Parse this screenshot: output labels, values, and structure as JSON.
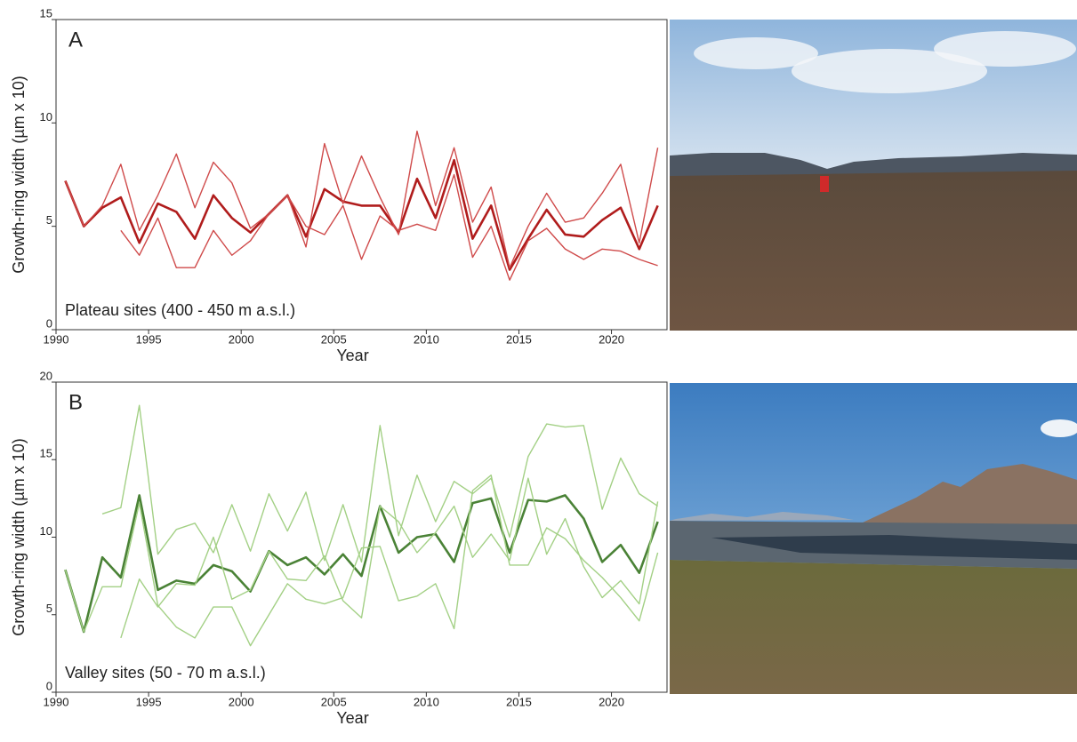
{
  "chart_data": [
    {
      "type": "line",
      "panel_label": "A",
      "annotation": "Plateau sites (400 - 450 m a.s.l.)",
      "ylabel": "Growth-ring width (µm x 10)",
      "xlabel": "Year",
      "xlim": [
        1990,
        2023
      ],
      "xticks": [
        1990,
        1995,
        2000,
        2005,
        2010,
        2015,
        2020
      ],
      "ylim": [
        0,
        15
      ],
      "yticks": [
        0,
        5,
        10,
        15
      ],
      "grid": false,
      "x": [
        1990.5,
        1991.5,
        1992.5,
        1993.5,
        1994.5,
        1995.5,
        1996.5,
        1997.5,
        1998.5,
        1999.5,
        2000.5,
        2001.5,
        2002.5,
        2003.5,
        2004.5,
        2005.5,
        2006.5,
        2007.5,
        2008.5,
        2009.5,
        2010.5,
        2011.5,
        2012.5,
        2013.5,
        2014.5,
        2015.5,
        2016.5,
        2017.5,
        2018.5,
        2019.5,
        2020.5,
        2021.5,
        2022.5
      ],
      "series": [
        {
          "color": "#b01c1c",
          "values": [
            7.2,
            5.0,
            5.9,
            6.4,
            4.2,
            6.1,
            5.7,
            4.4,
            6.5,
            5.4,
            4.7,
            5.6,
            6.5,
            4.5,
            6.8,
            6.2,
            6.0,
            6.0,
            4.7,
            7.3,
            5.4,
            8.2,
            4.4,
            6.0,
            2.9,
            4.4,
            5.8,
            4.6,
            4.5,
            5.3,
            5.9,
            3.9,
            6.0
          ]
        },
        {
          "color": "#cf4a4a",
          "values": [
            7.2,
            5.0,
            6.0,
            8.0,
            4.8,
            6.5,
            8.5,
            5.9,
            8.1,
            7.1,
            4.9,
            5.6,
            6.5,
            4.0,
            9.0,
            6.1,
            8.4,
            6.4,
            4.6,
            9.6,
            6.0,
            8.8,
            5.2,
            6.9,
            3.0,
            5.0,
            6.6,
            5.2,
            5.4,
            6.6,
            8.0,
            4.2,
            8.8
          ]
        },
        {
          "color": "#cf4a4a",
          "values": [
            null,
            null,
            null,
            4.8,
            3.6,
            5.4,
            3.0,
            3.0,
            4.8,
            3.6,
            4.3,
            5.6,
            6.5,
            5.0,
            4.6,
            6.0,
            3.4,
            5.5,
            4.8,
            5.1,
            4.8,
            7.5,
            3.5,
            5.0,
            2.4,
            4.3,
            4.9,
            3.9,
            3.4,
            3.9,
            3.8,
            3.4,
            3.1
          ]
        }
      ]
    },
    {
      "type": "line",
      "panel_label": "B",
      "annotation": "Valley sites (50 - 70 m a.s.l.)",
      "ylabel": "Growth-ring width (µm x 10)",
      "xlabel": "Year",
      "xlim": [
        1990,
        2023
      ],
      "xticks": [
        1990,
        1995,
        2000,
        2005,
        2010,
        2015,
        2020
      ],
      "ylim": [
        0,
        20
      ],
      "yticks": [
        0,
        5,
        10,
        15,
        20
      ],
      "grid": false,
      "x": [
        1990.5,
        1991.5,
        1992.5,
        1993.5,
        1994.5,
        1995.5,
        1996.5,
        1997.5,
        1998.5,
        1999.5,
        2000.5,
        2001.5,
        2002.5,
        2003.5,
        2004.5,
        2005.5,
        2006.5,
        2007.5,
        2008.5,
        2009.5,
        2010.5,
        2011.5,
        2012.5,
        2013.5,
        2014.5,
        2015.5,
        2016.5,
        2017.5,
        2018.5,
        2019.5,
        2020.5,
        2021.5,
        2022.5
      ],
      "series": [
        {
          "color": "#4a8236",
          "values": [
            7.9,
            3.9,
            8.7,
            7.4,
            12.7,
            6.6,
            7.2,
            7.0,
            8.2,
            7.8,
            6.5,
            9.1,
            8.2,
            8.7,
            7.6,
            8.9,
            7.5,
            12.0,
            9.0,
            10.0,
            10.2,
            8.4,
            12.2,
            12.5,
            9.0,
            12.4,
            12.3,
            12.7,
            11.2,
            8.4,
            9.5,
            7.7,
            11.0
          ]
        },
        {
          "color": "#a3d085",
          "values": [
            null,
            null,
            11.5,
            11.9,
            18.5,
            8.9,
            10.5,
            10.9,
            9.0,
            12.1,
            9.1,
            12.8,
            10.4,
            12.9,
            8.5,
            12.1,
            8.4,
            17.2,
            10.1,
            14.0,
            11.0,
            13.6,
            12.8,
            13.8,
            10.0,
            15.2,
            17.3,
            17.1,
            17.2,
            11.8,
            15.1,
            12.8,
            12.0
          ]
        },
        {
          "color": "#a3d085",
          "values": [
            7.9,
            3.9,
            6.8,
            6.8,
            12.2,
            5.6,
            4.2,
            3.5,
            5.5,
            5.5,
            3.0,
            5.0,
            7.0,
            6.0,
            5.7,
            6.1,
            9.3,
            9.4,
            5.9,
            6.2,
            7.0,
            4.1,
            13.0,
            14.0,
            8.2,
            8.2,
            10.6,
            9.9,
            8.5,
            7.4,
            6.1,
            4.6,
            9.0
          ]
        },
        {
          "color": "#a3d085",
          "values": [
            null,
            null,
            null,
            3.5,
            7.3,
            5.5,
            7.0,
            6.9,
            10.0,
            6.0,
            6.6,
            9.1,
            7.3,
            7.2,
            8.8,
            5.9,
            4.8,
            12.0,
            11.0,
            9.0,
            10.3,
            12.0,
            8.7,
            10.2,
            8.5,
            13.8,
            8.9,
            11.2,
            8.1,
            6.1,
            7.2,
            5.7,
            12.3
          ]
        }
      ]
    }
  ]
}
